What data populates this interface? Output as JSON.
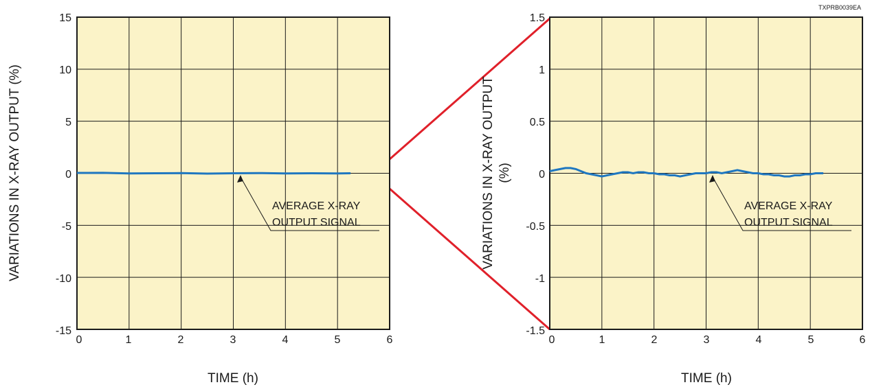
{
  "figure": {
    "code": "TXPRB0039EA",
    "colors": {
      "plot_background": "#fbf3c8",
      "series": "#1f77c0",
      "zoom_lines": "#e0202a",
      "grid": "#1a1a1a"
    }
  },
  "chart_data": [
    {
      "type": "line",
      "xlabel": "TIME (h)",
      "ylabel": "VARIATIONS IN X-RAY OUTPUT (%)",
      "xlim": [
        0,
        6
      ],
      "ylim": [
        -15,
        15
      ],
      "xticks": [
        "0",
        "1",
        "2",
        "3",
        "4",
        "5",
        "6"
      ],
      "yticks": [
        "15",
        "10",
        "5",
        "0",
        "-5",
        "-10",
        "-15"
      ],
      "grid": true,
      "annotation": {
        "lines": [
          "AVERAGE X-RAY",
          "OUTPUT SIGNAL"
        ],
        "points_to": [
          3.15,
          0
        ]
      },
      "series": [
        {
          "x": [
            0,
            0.5,
            1,
            1.5,
            2,
            2.5,
            3,
            3.5,
            4,
            4.5,
            5,
            5.25
          ],
          "y": [
            0.03,
            0.04,
            -0.02,
            0.0,
            0.01,
            -0.03,
            0.0,
            0.02,
            -0.02,
            0.0,
            -0.02,
            0.0
          ]
        }
      ]
    },
    {
      "type": "line",
      "xlabel": "TIME (h)",
      "ylabel": "VARIATIONS IN X-RAY OUTPUT (%)",
      "xlim": [
        0,
        6
      ],
      "ylim": [
        -1.5,
        1.5
      ],
      "xticks": [
        "0",
        "1",
        "2",
        "3",
        "4",
        "5",
        "6"
      ],
      "yticks": [
        "1.5",
        "1",
        "0.5",
        "0",
        "-0.5",
        "-1",
        "-1.5"
      ],
      "grid": true,
      "annotation": {
        "lines": [
          "AVERAGE X-RAY",
          "OUTPUT SIGNAL"
        ],
        "points_to": [
          3.15,
          0
        ]
      },
      "series": [
        {
          "x": [
            0,
            0.1,
            0.2,
            0.3,
            0.4,
            0.5,
            0.6,
            0.7,
            0.8,
            0.9,
            1.0,
            1.1,
            1.2,
            1.3,
            1.4,
            1.5,
            1.6,
            1.7,
            1.8,
            1.9,
            2.0,
            2.1,
            2.2,
            2.3,
            2.4,
            2.5,
            2.6,
            2.7,
            2.8,
            2.9,
            3.0,
            3.1,
            3.2,
            3.3,
            3.4,
            3.5,
            3.6,
            3.7,
            3.8,
            3.9,
            4.0,
            4.1,
            4.2,
            4.3,
            4.4,
            4.5,
            4.6,
            4.7,
            4.8,
            4.9,
            5.0,
            5.1,
            5.2,
            5.25
          ],
          "y": [
            0.02,
            0.03,
            0.04,
            0.05,
            0.05,
            0.04,
            0.02,
            0.0,
            -0.01,
            -0.02,
            -0.03,
            -0.02,
            -0.01,
            0.0,
            0.01,
            0.01,
            0.0,
            0.01,
            0.01,
            0.0,
            0.0,
            -0.01,
            -0.01,
            -0.02,
            -0.02,
            -0.03,
            -0.02,
            -0.01,
            0.0,
            0.0,
            0.0,
            0.01,
            0.01,
            0.0,
            0.01,
            0.02,
            0.03,
            0.02,
            0.01,
            0.0,
            0.0,
            -0.01,
            -0.01,
            -0.02,
            -0.02,
            -0.03,
            -0.03,
            -0.02,
            -0.02,
            -0.01,
            -0.01,
            0.0,
            0.0,
            0.0
          ]
        }
      ]
    }
  ]
}
